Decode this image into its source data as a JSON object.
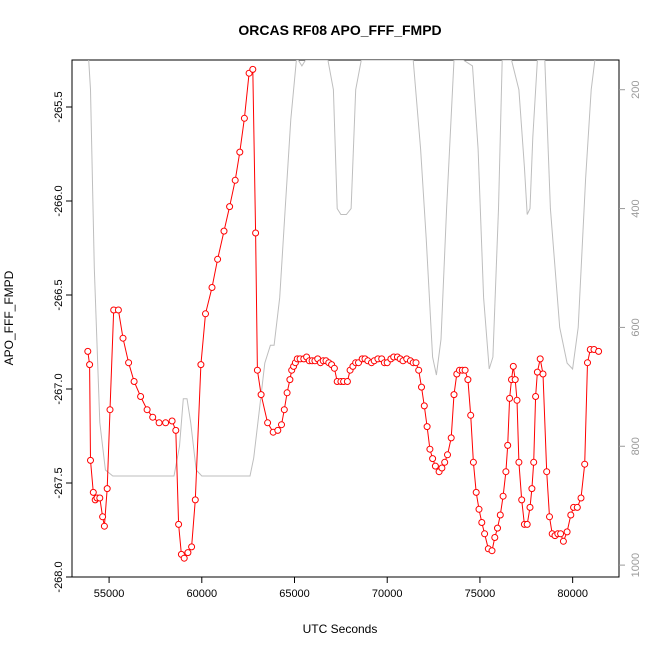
{
  "chart_data": {
    "type": "line",
    "title": "ORCAS RF08 APO_FFF_FMPD",
    "xlabel": "UTC Seconds",
    "ylabel": "APO_FFF_FMPD",
    "xlim": [
      53000,
      82500
    ],
    "ylim": [
      -268.0,
      -265.25
    ],
    "y2lim": [
      1020,
      150
    ],
    "x_ticks": [
      55000,
      60000,
      65000,
      70000,
      75000,
      80000
    ],
    "x_tick_labels": [
      "55000",
      "60000",
      "65000",
      "70000",
      "75000",
      "80000"
    ],
    "y_ticks": [
      -268.0,
      -267.5,
      -267.0,
      -266.5,
      -266.0,
      -265.5
    ],
    "y_tick_labels": [
      "-268.0",
      "-267.5",
      "-267.0",
      "-266.5",
      "-266.0",
      "-265.5"
    ],
    "y2_ticks": [
      200,
      400,
      600,
      800,
      1000
    ],
    "y2_tick_labels": [
      "200",
      "400",
      "600",
      "800",
      "1000"
    ],
    "colors": {
      "series": "#ff0000",
      "secondary": "#bebebe"
    },
    "series": [
      {
        "values": [
          [
            53850,
            -266.8
          ],
          [
            53950,
            -266.87
          ],
          [
            54000,
            -267.38
          ],
          [
            54150,
            -267.55
          ],
          [
            54250,
            -267.59
          ],
          [
            54350,
            -267.58
          ],
          [
            54500,
            -267.58
          ],
          [
            54650,
            -267.68
          ],
          [
            54750,
            -267.73
          ],
          [
            54900,
            -267.53
          ],
          [
            55050,
            -267.11
          ],
          [
            55250,
            -266.58
          ],
          [
            55500,
            -266.58
          ],
          [
            55750,
            -266.73
          ],
          [
            56050,
            -266.86
          ],
          [
            56350,
            -266.96
          ],
          [
            56700,
            -267.04
          ],
          [
            57050,
            -267.11
          ],
          [
            57350,
            -267.15
          ],
          [
            57700,
            -267.18
          ],
          [
            58050,
            -267.18
          ],
          [
            58400,
            -267.17
          ],
          [
            58600,
            -267.22
          ],
          [
            58750,
            -267.72
          ],
          [
            58900,
            -267.88
          ],
          [
            59050,
            -267.9
          ],
          [
            59250,
            -267.87
          ],
          [
            59450,
            -267.84
          ],
          [
            59650,
            -267.59
          ],
          [
            59950,
            -266.87
          ],
          [
            60200,
            -266.6
          ],
          [
            60550,
            -266.46
          ],
          [
            60850,
            -266.31
          ],
          [
            61200,
            -266.16
          ],
          [
            61500,
            -266.03
          ],
          [
            61800,
            -265.89
          ],
          [
            62050,
            -265.74
          ],
          [
            62300,
            -265.56
          ],
          [
            62550,
            -265.32
          ],
          [
            62750,
            -265.3
          ],
          [
            62900,
            -266.17
          ],
          [
            63000,
            -266.9
          ],
          [
            63200,
            -267.03
          ],
          [
            63550,
            -267.18
          ],
          [
            63850,
            -267.23
          ],
          [
            64100,
            -267.22
          ],
          [
            64300,
            -267.19
          ],
          [
            64450,
            -267.11
          ],
          [
            64600,
            -267.02
          ],
          [
            64750,
            -266.95
          ],
          [
            64850,
            -266.9
          ],
          [
            64950,
            -266.88
          ],
          [
            65050,
            -266.86
          ],
          [
            65150,
            -266.84
          ],
          [
            65300,
            -266.84
          ],
          [
            65500,
            -266.84
          ],
          [
            65650,
            -266.83
          ],
          [
            65800,
            -266.85
          ],
          [
            65950,
            -266.85
          ],
          [
            66100,
            -266.85
          ],
          [
            66250,
            -266.84
          ],
          [
            66400,
            -266.86
          ],
          [
            66550,
            -266.85
          ],
          [
            66700,
            -266.85
          ],
          [
            66850,
            -266.86
          ],
          [
            67000,
            -266.87
          ],
          [
            67150,
            -266.89
          ],
          [
            67300,
            -266.96
          ],
          [
            67500,
            -266.96
          ],
          [
            67650,
            -266.96
          ],
          [
            67850,
            -266.96
          ],
          [
            68000,
            -266.9
          ],
          [
            68150,
            -266.88
          ],
          [
            68300,
            -266.86
          ],
          [
            68450,
            -266.86
          ],
          [
            68650,
            -266.84
          ],
          [
            68800,
            -266.84
          ],
          [
            68950,
            -266.85
          ],
          [
            69150,
            -266.86
          ],
          [
            69300,
            -266.85
          ],
          [
            69500,
            -266.84
          ],
          [
            69700,
            -266.84
          ],
          [
            69850,
            -266.86
          ],
          [
            70000,
            -266.86
          ],
          [
            70200,
            -266.84
          ],
          [
            70350,
            -266.83
          ],
          [
            70550,
            -266.83
          ],
          [
            70700,
            -266.84
          ],
          [
            70850,
            -266.85
          ],
          [
            71050,
            -266.84
          ],
          [
            71250,
            -266.85
          ],
          [
            71400,
            -266.86
          ],
          [
            71550,
            -266.86
          ],
          [
            71700,
            -266.9
          ],
          [
            71850,
            -266.99
          ],
          [
            72000,
            -267.09
          ],
          [
            72150,
            -267.2
          ],
          [
            72300,
            -267.32
          ],
          [
            72450,
            -267.37
          ],
          [
            72600,
            -267.41
          ],
          [
            72800,
            -267.44
          ],
          [
            72950,
            -267.42
          ],
          [
            73100,
            -267.39
          ],
          [
            73250,
            -267.35
          ],
          [
            73450,
            -267.26
          ],
          [
            73600,
            -267.03
          ],
          [
            73750,
            -266.92
          ],
          [
            73900,
            -266.9
          ],
          [
            74050,
            -266.9
          ],
          [
            74200,
            -266.9
          ],
          [
            74350,
            -266.95
          ],
          [
            74500,
            -267.14
          ],
          [
            74650,
            -267.39
          ],
          [
            74800,
            -267.55
          ],
          [
            74950,
            -267.64
          ],
          [
            75100,
            -267.71
          ],
          [
            75250,
            -267.77
          ],
          [
            75450,
            -267.85
          ],
          [
            75650,
            -267.86
          ],
          [
            75800,
            -267.79
          ],
          [
            75950,
            -267.74
          ],
          [
            76100,
            -267.67
          ],
          [
            76250,
            -267.57
          ],
          [
            76400,
            -267.44
          ],
          [
            76500,
            -267.3
          ],
          [
            76600,
            -267.05
          ],
          [
            76700,
            -266.95
          ],
          [
            76800,
            -266.88
          ],
          [
            76900,
            -266.95
          ],
          [
            77000,
            -267.06
          ],
          [
            77100,
            -267.39
          ],
          [
            77250,
            -267.59
          ],
          [
            77400,
            -267.72
          ],
          [
            77550,
            -267.72
          ],
          [
            77700,
            -267.63
          ],
          [
            77800,
            -267.53
          ],
          [
            77900,
            -267.39
          ],
          [
            78000,
            -267.04
          ],
          [
            78100,
            -266.91
          ],
          [
            78250,
            -266.84
          ],
          [
            78400,
            -266.92
          ],
          [
            78600,
            -267.44
          ],
          [
            78750,
            -267.68
          ],
          [
            78900,
            -267.77
          ],
          [
            79050,
            -267.78
          ],
          [
            79200,
            -267.77
          ],
          [
            79350,
            -267.77
          ],
          [
            79500,
            -267.81
          ],
          [
            79700,
            -267.76
          ],
          [
            79900,
            -267.67
          ],
          [
            80050,
            -267.63
          ],
          [
            80250,
            -267.63
          ],
          [
            80450,
            -267.58
          ],
          [
            80650,
            -267.4
          ],
          [
            80800,
            -266.86
          ],
          [
            80950,
            -266.79
          ],
          [
            81150,
            -266.79
          ],
          [
            81400,
            -266.8
          ]
        ]
      },
      {
        "axis": "right",
        "values": [
          [
            53900,
            150
          ],
          [
            54000,
            200
          ],
          [
            54200,
            500
          ],
          [
            54500,
            760
          ],
          [
            54800,
            840
          ],
          [
            55200,
            850
          ],
          [
            56000,
            850
          ],
          [
            57000,
            850
          ],
          [
            58000,
            850
          ],
          [
            58500,
            850
          ],
          [
            58800,
            800
          ],
          [
            59000,
            720
          ],
          [
            59200,
            720
          ],
          [
            59400,
            760
          ],
          [
            59700,
            840
          ],
          [
            60000,
            850
          ],
          [
            61000,
            850
          ],
          [
            62000,
            850
          ],
          [
            62600,
            850
          ],
          [
            62800,
            820
          ],
          [
            63100,
            740
          ],
          [
            63400,
            660
          ],
          [
            63700,
            630
          ],
          [
            63900,
            630
          ],
          [
            64200,
            550
          ],
          [
            64500,
            400
          ],
          [
            64800,
            250
          ],
          [
            65100,
            150
          ],
          [
            65200,
            150
          ],
          [
            65400,
            160
          ],
          [
            65600,
            150
          ],
          [
            66000,
            150
          ],
          [
            66400,
            150
          ],
          [
            66800,
            150
          ],
          [
            67100,
            200
          ],
          [
            67300,
            400
          ],
          [
            67500,
            410
          ],
          [
            67800,
            410
          ],
          [
            68050,
            400
          ],
          [
            68300,
            200
          ],
          [
            68600,
            150
          ],
          [
            69000,
            150
          ],
          [
            69400,
            150
          ],
          [
            69800,
            150
          ],
          [
            70200,
            150
          ],
          [
            70600,
            150
          ],
          [
            71000,
            150
          ],
          [
            71400,
            150
          ],
          [
            71800,
            300
          ],
          [
            72100,
            450
          ],
          [
            72450,
            650
          ],
          [
            72650,
            680
          ],
          [
            72900,
            620
          ],
          [
            73200,
            400
          ],
          [
            73600,
            150
          ],
          [
            74100,
            150
          ],
          [
            74600,
            160
          ],
          [
            74900,
            300
          ],
          [
            75200,
            550
          ],
          [
            75500,
            670
          ],
          [
            75700,
            650
          ],
          [
            76000,
            400
          ],
          [
            76200,
            150
          ],
          [
            76700,
            150
          ],
          [
            77100,
            200
          ],
          [
            77400,
            330
          ],
          [
            77550,
            410
          ],
          [
            77700,
            400
          ],
          [
            77850,
            280
          ],
          [
            78100,
            150
          ],
          [
            78500,
            150
          ],
          [
            78800,
            400
          ],
          [
            79300,
            600
          ],
          [
            79700,
            660
          ],
          [
            80000,
            670
          ],
          [
            80300,
            600
          ],
          [
            80700,
            350
          ],
          [
            81000,
            200
          ],
          [
            81200,
            150
          ]
        ]
      }
    ]
  }
}
